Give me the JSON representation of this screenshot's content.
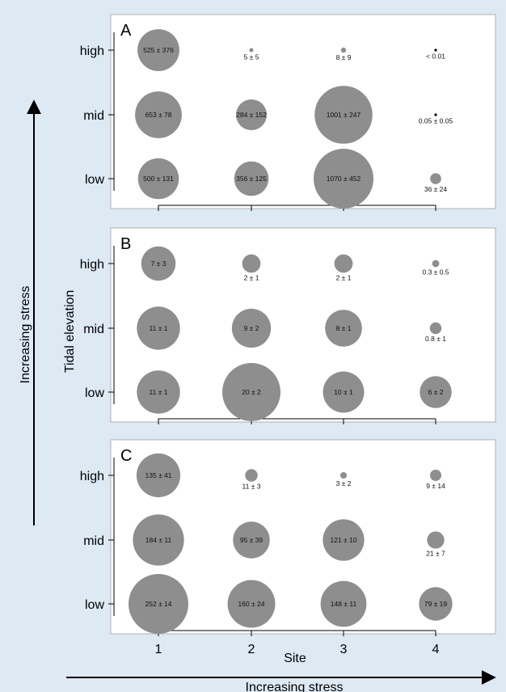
{
  "chart_data": {
    "type": "bubble",
    "x_title": "Site",
    "y_title": "Tidal elevation",
    "stress_label_x": "Increasing stress",
    "stress_label_y": "Increasing stress",
    "sites": [
      "1",
      "2",
      "3",
      "4"
    ],
    "elevations": [
      "high",
      "mid",
      "low"
    ],
    "colors": {
      "bubble": "#8e8e8e",
      "panel": "#ffffff",
      "background": "#dde9f3",
      "axis": "#000000"
    },
    "panels": [
      {
        "label": "A",
        "cells": [
          {
            "site": "1",
            "elevation": "high",
            "value": 525,
            "label": "525 ± 376"
          },
          {
            "site": "2",
            "elevation": "high",
            "value": 5,
            "label": "5 ± 5"
          },
          {
            "site": "3",
            "elevation": "high",
            "value": 8,
            "label": "8 ± 9"
          },
          {
            "site": "4",
            "elevation": "high",
            "value": 0.01,
            "label": "< 0.01"
          },
          {
            "site": "1",
            "elevation": "mid",
            "value": 653,
            "label": "653 ± 78"
          },
          {
            "site": "2",
            "elevation": "mid",
            "value": 284,
            "label": "284 ± 152"
          },
          {
            "site": "3",
            "elevation": "mid",
            "value": 1001,
            "label": "1001 ± 247"
          },
          {
            "site": "4",
            "elevation": "mid",
            "value": 0.05,
            "label": "0.05 ± 0.05"
          },
          {
            "site": "1",
            "elevation": "low",
            "value": 500,
            "label": "500 ± 131"
          },
          {
            "site": "2",
            "elevation": "low",
            "value": 356,
            "label": "356 ± 125"
          },
          {
            "site": "3",
            "elevation": "low",
            "value": 1070,
            "label": "1070 ± 452"
          },
          {
            "site": "4",
            "elevation": "low",
            "value": 36,
            "label": "36 ± 24"
          }
        ]
      },
      {
        "label": "B",
        "cells": [
          {
            "site": "1",
            "elevation": "high",
            "value": 7,
            "label": "7 ± 3"
          },
          {
            "site": "2",
            "elevation": "high",
            "value": 2,
            "label": "2 ± 1"
          },
          {
            "site": "3",
            "elevation": "high",
            "value": 2,
            "label": "2 ± 1"
          },
          {
            "site": "4",
            "elevation": "high",
            "value": 0.3,
            "label": "0.3 ± 0.5"
          },
          {
            "site": "1",
            "elevation": "mid",
            "value": 11,
            "label": "11 ± 1"
          },
          {
            "site": "2",
            "elevation": "mid",
            "value": 9,
            "label": "9 ± 2"
          },
          {
            "site": "3",
            "elevation": "mid",
            "value": 8,
            "label": "8 ± 1"
          },
          {
            "site": "4",
            "elevation": "mid",
            "value": 0.8,
            "label": "0.8 ± 1"
          },
          {
            "site": "1",
            "elevation": "low",
            "value": 11,
            "label": "11 ± 1"
          },
          {
            "site": "2",
            "elevation": "low",
            "value": 20,
            "label": "20 ± 2"
          },
          {
            "site": "3",
            "elevation": "low",
            "value": 10,
            "label": "10 ± 1"
          },
          {
            "site": "4",
            "elevation": "low",
            "value": 6,
            "label": "6 ± 2"
          }
        ]
      },
      {
        "label": "C",
        "cells": [
          {
            "site": "1",
            "elevation": "high",
            "value": 135,
            "label": "135 ± 41"
          },
          {
            "site": "2",
            "elevation": "high",
            "value": 11,
            "label": "11 ± 3"
          },
          {
            "site": "3",
            "elevation": "high",
            "value": 3,
            "label": "3 ± 2"
          },
          {
            "site": "4",
            "elevation": "high",
            "value": 9,
            "label": "9 ± 14"
          },
          {
            "site": "1",
            "elevation": "mid",
            "value": 184,
            "label": "184 ± 11"
          },
          {
            "site": "2",
            "elevation": "mid",
            "value": 95,
            "label": "95 ± 39"
          },
          {
            "site": "3",
            "elevation": "mid",
            "value": 121,
            "label": "121 ± 10"
          },
          {
            "site": "4",
            "elevation": "mid",
            "value": 21,
            "label": "21 ± 7"
          },
          {
            "site": "1",
            "elevation": "low",
            "value": 252,
            "label": "252 ± 14"
          },
          {
            "site": "2",
            "elevation": "low",
            "value": 160,
            "label": "160 ± 24"
          },
          {
            "site": "3",
            "elevation": "low",
            "value": 148,
            "label": "148 ± 11"
          },
          {
            "site": "4",
            "elevation": "low",
            "value": 79,
            "label": "79 ± 19"
          }
        ]
      }
    ]
  }
}
